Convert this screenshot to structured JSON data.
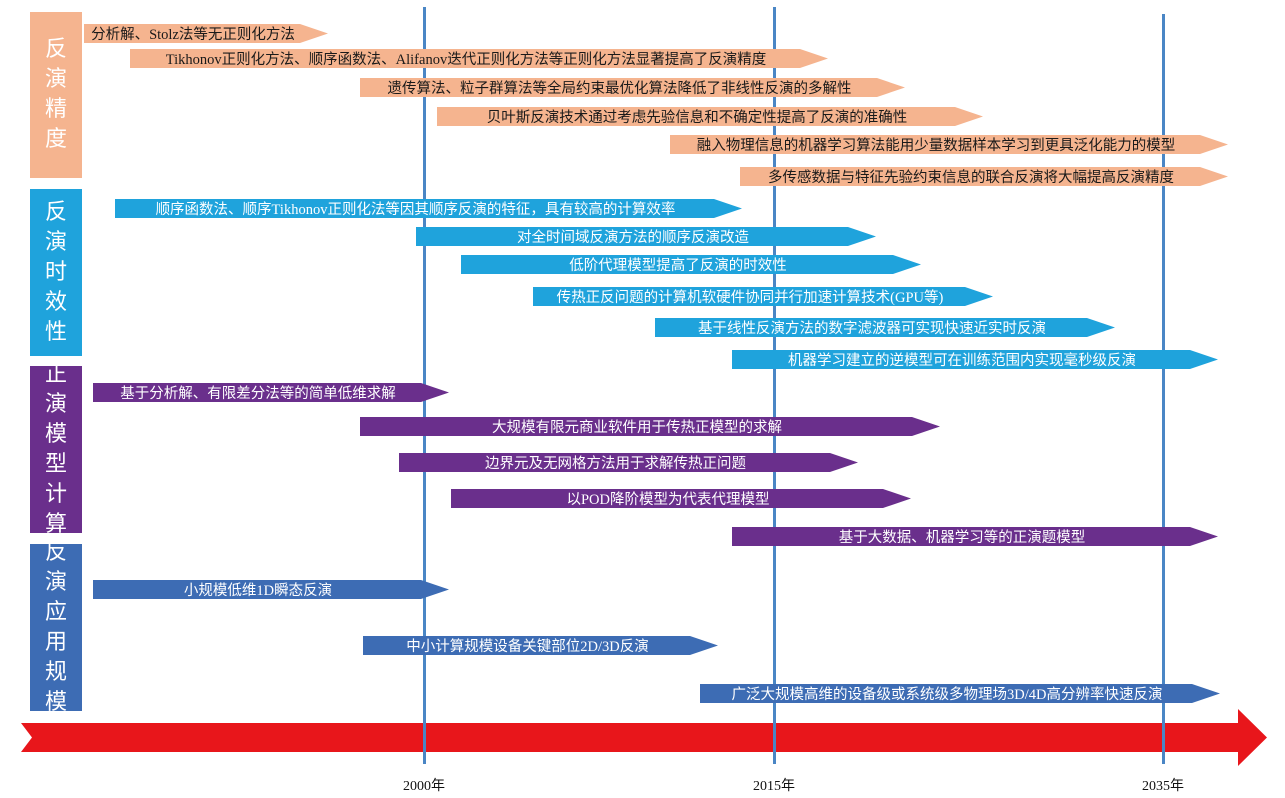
{
  "categories": [
    {
      "label": [
        "反",
        "演",
        "精",
        "度"
      ],
      "color": "#f5b48f"
    },
    {
      "label": [
        "反",
        "演",
        "时",
        "效",
        "性"
      ],
      "color": "#1fa3dc"
    },
    {
      "label": [
        "正",
        "演",
        "模",
        "型",
        "计",
        "算"
      ],
      "color": "#6a2f8c"
    },
    {
      "label": [
        "反",
        "演",
        "应",
        "用",
        "规",
        "模"
      ],
      "color": "#3d6cb4"
    }
  ],
  "groups": {
    "accuracy": [
      "分析解、Stolz法等无正则化方法",
      "Tikhonov正则化方法、顺序函数法、Alifanov迭代正则化方法等正则化方法显著提高了反演精度",
      "遗传算法、粒子群算法等全局约束最优化算法降低了非线性反演的多解性",
      "贝叶斯反演技术通过考虑先验信息和不确定性提高了反演的准确性",
      "融入物理信息的机器学习算法能用少量数据样本学习到更具泛化能力的模型",
      "多传感数据与特征先验约束信息的联合反演将大幅提高反演精度"
    ],
    "timeliness": [
      "顺序函数法、顺序Tikhonov正则化法等因其顺序反演的特征，具有较高的计算效率",
      "对全时间域反演方法的顺序反演改造",
      "低阶代理模型提高了反演的时效性",
      "传热正反问题的计算机软硬件协同并行加速计算技术(GPU等)",
      "基于线性反演方法的数字滤波器可实现快速近实时反演",
      "机器学习建立的逆模型可在训练范围内实现毫秒级反演"
    ],
    "forward": [
      "基于分析解、有限差分法等的简单低维求解",
      "大规模有限元商业软件用于传热正模型的求解",
      "边界元及无网格方法用于求解传热正问题",
      "以POD降阶模型为代表代理模型",
      "基于大数据、机器学习等的正演题模型"
    ],
    "scale": [
      "小规模低维1D瞬态反演",
      "中小计算规模设备关键部位2D/3D反演",
      "广泛大规模高维的设备级或系统级多物理场3D/4D高分辨率快速反演"
    ]
  },
  "years": [
    "2000年",
    "2015年",
    "2035年"
  ],
  "colors": {
    "timeline": "#e8161b",
    "year_line": "#4a86c5"
  }
}
